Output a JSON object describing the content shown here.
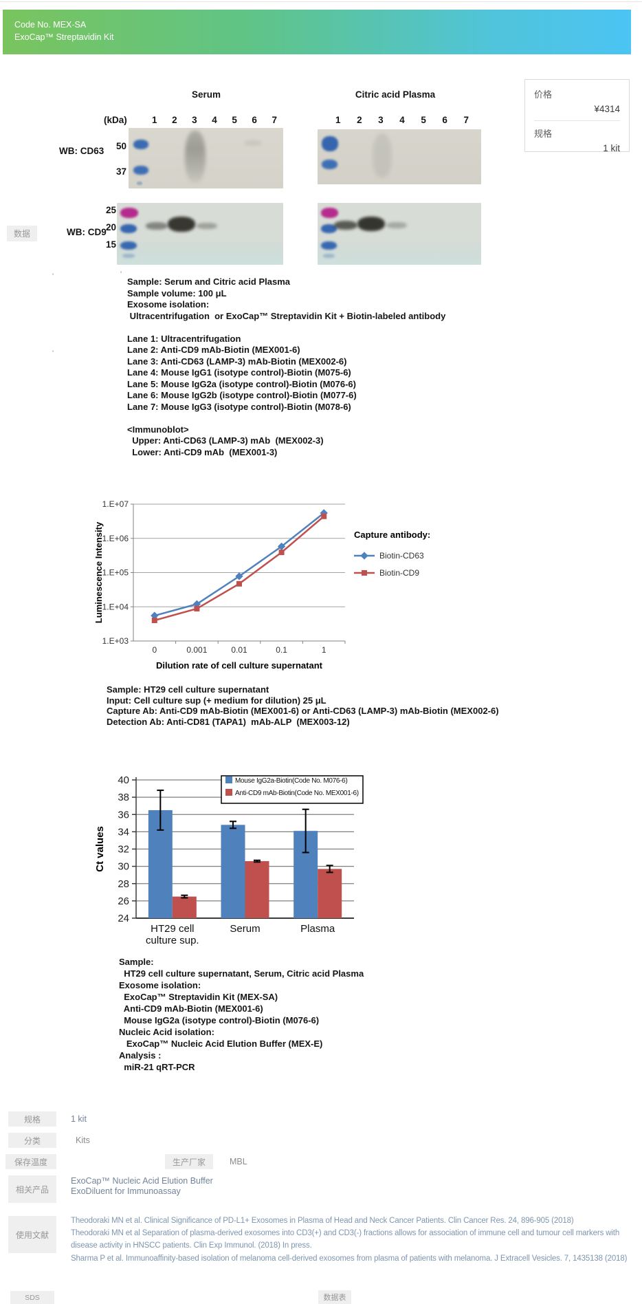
{
  "header": {
    "code": "Code No. MEX-SA",
    "title": "ExoCap™ Streptavidin Kit"
  },
  "price_box": {
    "price_label": "价格",
    "price": "¥4314",
    "size_label": "规格",
    "size": "1 kit"
  },
  "misc": {
    "data_tab": "数据",
    "stray_marks": [
      "'",
      "'",
      "'"
    ]
  },
  "wb": {
    "serum_title": "Serum",
    "plasma_title": "Citric acid Plasma",
    "kda_label": "(kDa)",
    "lanes": [
      "1",
      "2",
      "3",
      "4",
      "5",
      "6",
      "7"
    ],
    "cd63_label": "WB: CD63",
    "cd9_label": "WB: CD9",
    "cd63_markers": [
      "50",
      "37"
    ],
    "cd9_markers": [
      "25",
      "20",
      "15"
    ]
  },
  "text_blocks": {
    "wb_notes": [
      "Sample: Serum and Citric acid Plasma",
      "Sample volume: 100 μL",
      "Exosome isolation:",
      " Ultracentrifugation  or ExoCap™ Streptavidin Kit + Biotin-labeled antibody",
      "",
      "Lane 1: Ultracentrifugation",
      "Lane 2: Anti-CD9 mAb-Biotin (MEX001-6)",
      "Lane 3: Anti-CD63 (LAMP-3) mAb-Biotin (MEX002-6)",
      "Lane 4: Mouse IgG1 (isotype control)-Biotin (M075-6)",
      "Lane 5: Mouse IgG2a (isotype control)-Biotin (M076-6)",
      "Lane 6: Mouse IgG2b (isotype control)-Biotin (M077-6)",
      "Lane 7: Mouse IgG3 (isotype control)-Biotin (M078-6)",
      "",
      "<Immunoblot>",
      "  Upper: Anti-CD63 (LAMP-3) mAb  (MEX002-3)",
      "  Lower: Anti-CD9 mAb  (MEX001-3)"
    ],
    "elisa_notes": [
      "Sample: HT29 cell culture supernatant",
      "Input: Cell culture sup (+ medium for dilution) 25 μL",
      "Capture Ab: Anti-CD9 mAb-Biotin (MEX001-6) or Anti-CD63 (LAMP-3) mAb-Biotin (MEX002-6)",
      "Detection Ab: Anti-CD81 (TAPA1)  mAb-ALP  (MEX003-12)"
    ],
    "qpcr_notes": [
      "Sample:",
      "  HT29 cell culture supernatant, Serum, Citric acid Plasma",
      "Exosome isolation:",
      "  ExoCap™ Streptavidin Kit (MEX-SA)",
      "  Anti-CD9 mAb-Biotin (MEX001-6)",
      "  Mouse IgG2a (isotype control)-Biotin (M076-6)",
      "Nucleic Acid isolation:",
      "   ExoCap™ Nucleic Acid Elution Buffer (MEX-E)",
      "Analysis :",
      "  miR-21 qRT-PCR"
    ]
  },
  "chart_data": [
    {
      "type": "line",
      "xlabel": "Dilution rate of cell culture supernatant",
      "ylabel": "Luminescence Intensity",
      "x_categories": [
        "0",
        "0.001",
        "0.01",
        "0.1",
        "1"
      ],
      "y_scale": "log10",
      "ylim": [
        1000,
        10000000
      ],
      "y_ticks": [
        "1.E+03",
        "1.E+04",
        "1.E+05",
        "1.E+06",
        "1.E+07"
      ],
      "grid": true,
      "legend_position": "right",
      "legend_title": "Capture antibody:",
      "series": [
        {
          "name": "Biotin-CD63",
          "color": "#4F81BD",
          "marker": "diamond",
          "values": [
            5500,
            12000,
            78000,
            580000,
            5500000
          ]
        },
        {
          "name": "Biotin-CD9",
          "color": "#C0504D",
          "marker": "square",
          "values": [
            4000,
            8800,
            47000,
            390000,
            4400000
          ]
        }
      ]
    },
    {
      "type": "bar",
      "ylabel": "Ct values",
      "ylim": [
        24,
        40
      ],
      "y_tick_step": 2,
      "grid": true,
      "legend_position": "top",
      "categories": [
        [
          "HT29 cell",
          "culture  sup."
        ],
        [
          "Serum"
        ],
        [
          "Plasma"
        ]
      ],
      "series": [
        {
          "name": "Mouse IgG2a-Biotin(Code No. M076-6)",
          "color": "#4F81BD",
          "values": [
            36.5,
            34.8,
            34.1
          ],
          "errors": [
            2.3,
            0.4,
            2.5
          ]
        },
        {
          "name": "Anti-CD9 mAb-Biotin(Code No. MEX001-6)",
          "color": "#C0504D",
          "values": [
            26.5,
            30.6,
            29.7
          ],
          "errors": [
            0.15,
            0.1,
            0.4
          ]
        }
      ]
    }
  ],
  "meta": {
    "spec_label": "规格",
    "spec_value": "1 kit",
    "category_label": "分类",
    "category_value": "Kits",
    "storage_label": "保存温度",
    "storage_value": "",
    "manufacturer_label": "生产厂家",
    "manufacturer_value": "MBL",
    "related_label": "相关产品",
    "related_products": [
      "ExoCap™ Nucleic Acid Elution Buffer",
      "ExoDiluent for Immunoassay"
    ],
    "references_label": "使用文献",
    "references": [
      "Theodoraki MN et  al. Clinical Significance of PD-L1+ Exosomes in Plasma of Head and Neck  Cancer Patients. Clin Cancer Res. 24, 896-905 (2018)",
      "Theodoraki MN et al Separation of  plasma-derived exosomes into CD3(+) and CD3(-) fractions allows for  association of immune cell and tumour cell markers with disease activity in  HNSCC patients. Clin Exp Immunol. (2018) In press.",
      "Sharma P et al. Immunoaffinity-based  isolation of melanoma cell-derived exosomes from plasma of patients with  melanoma. J Extracell Vesicles. 7, 1435138 (2018)"
    ],
    "sds_label": "SDS",
    "datasheet_label": "数据表"
  }
}
